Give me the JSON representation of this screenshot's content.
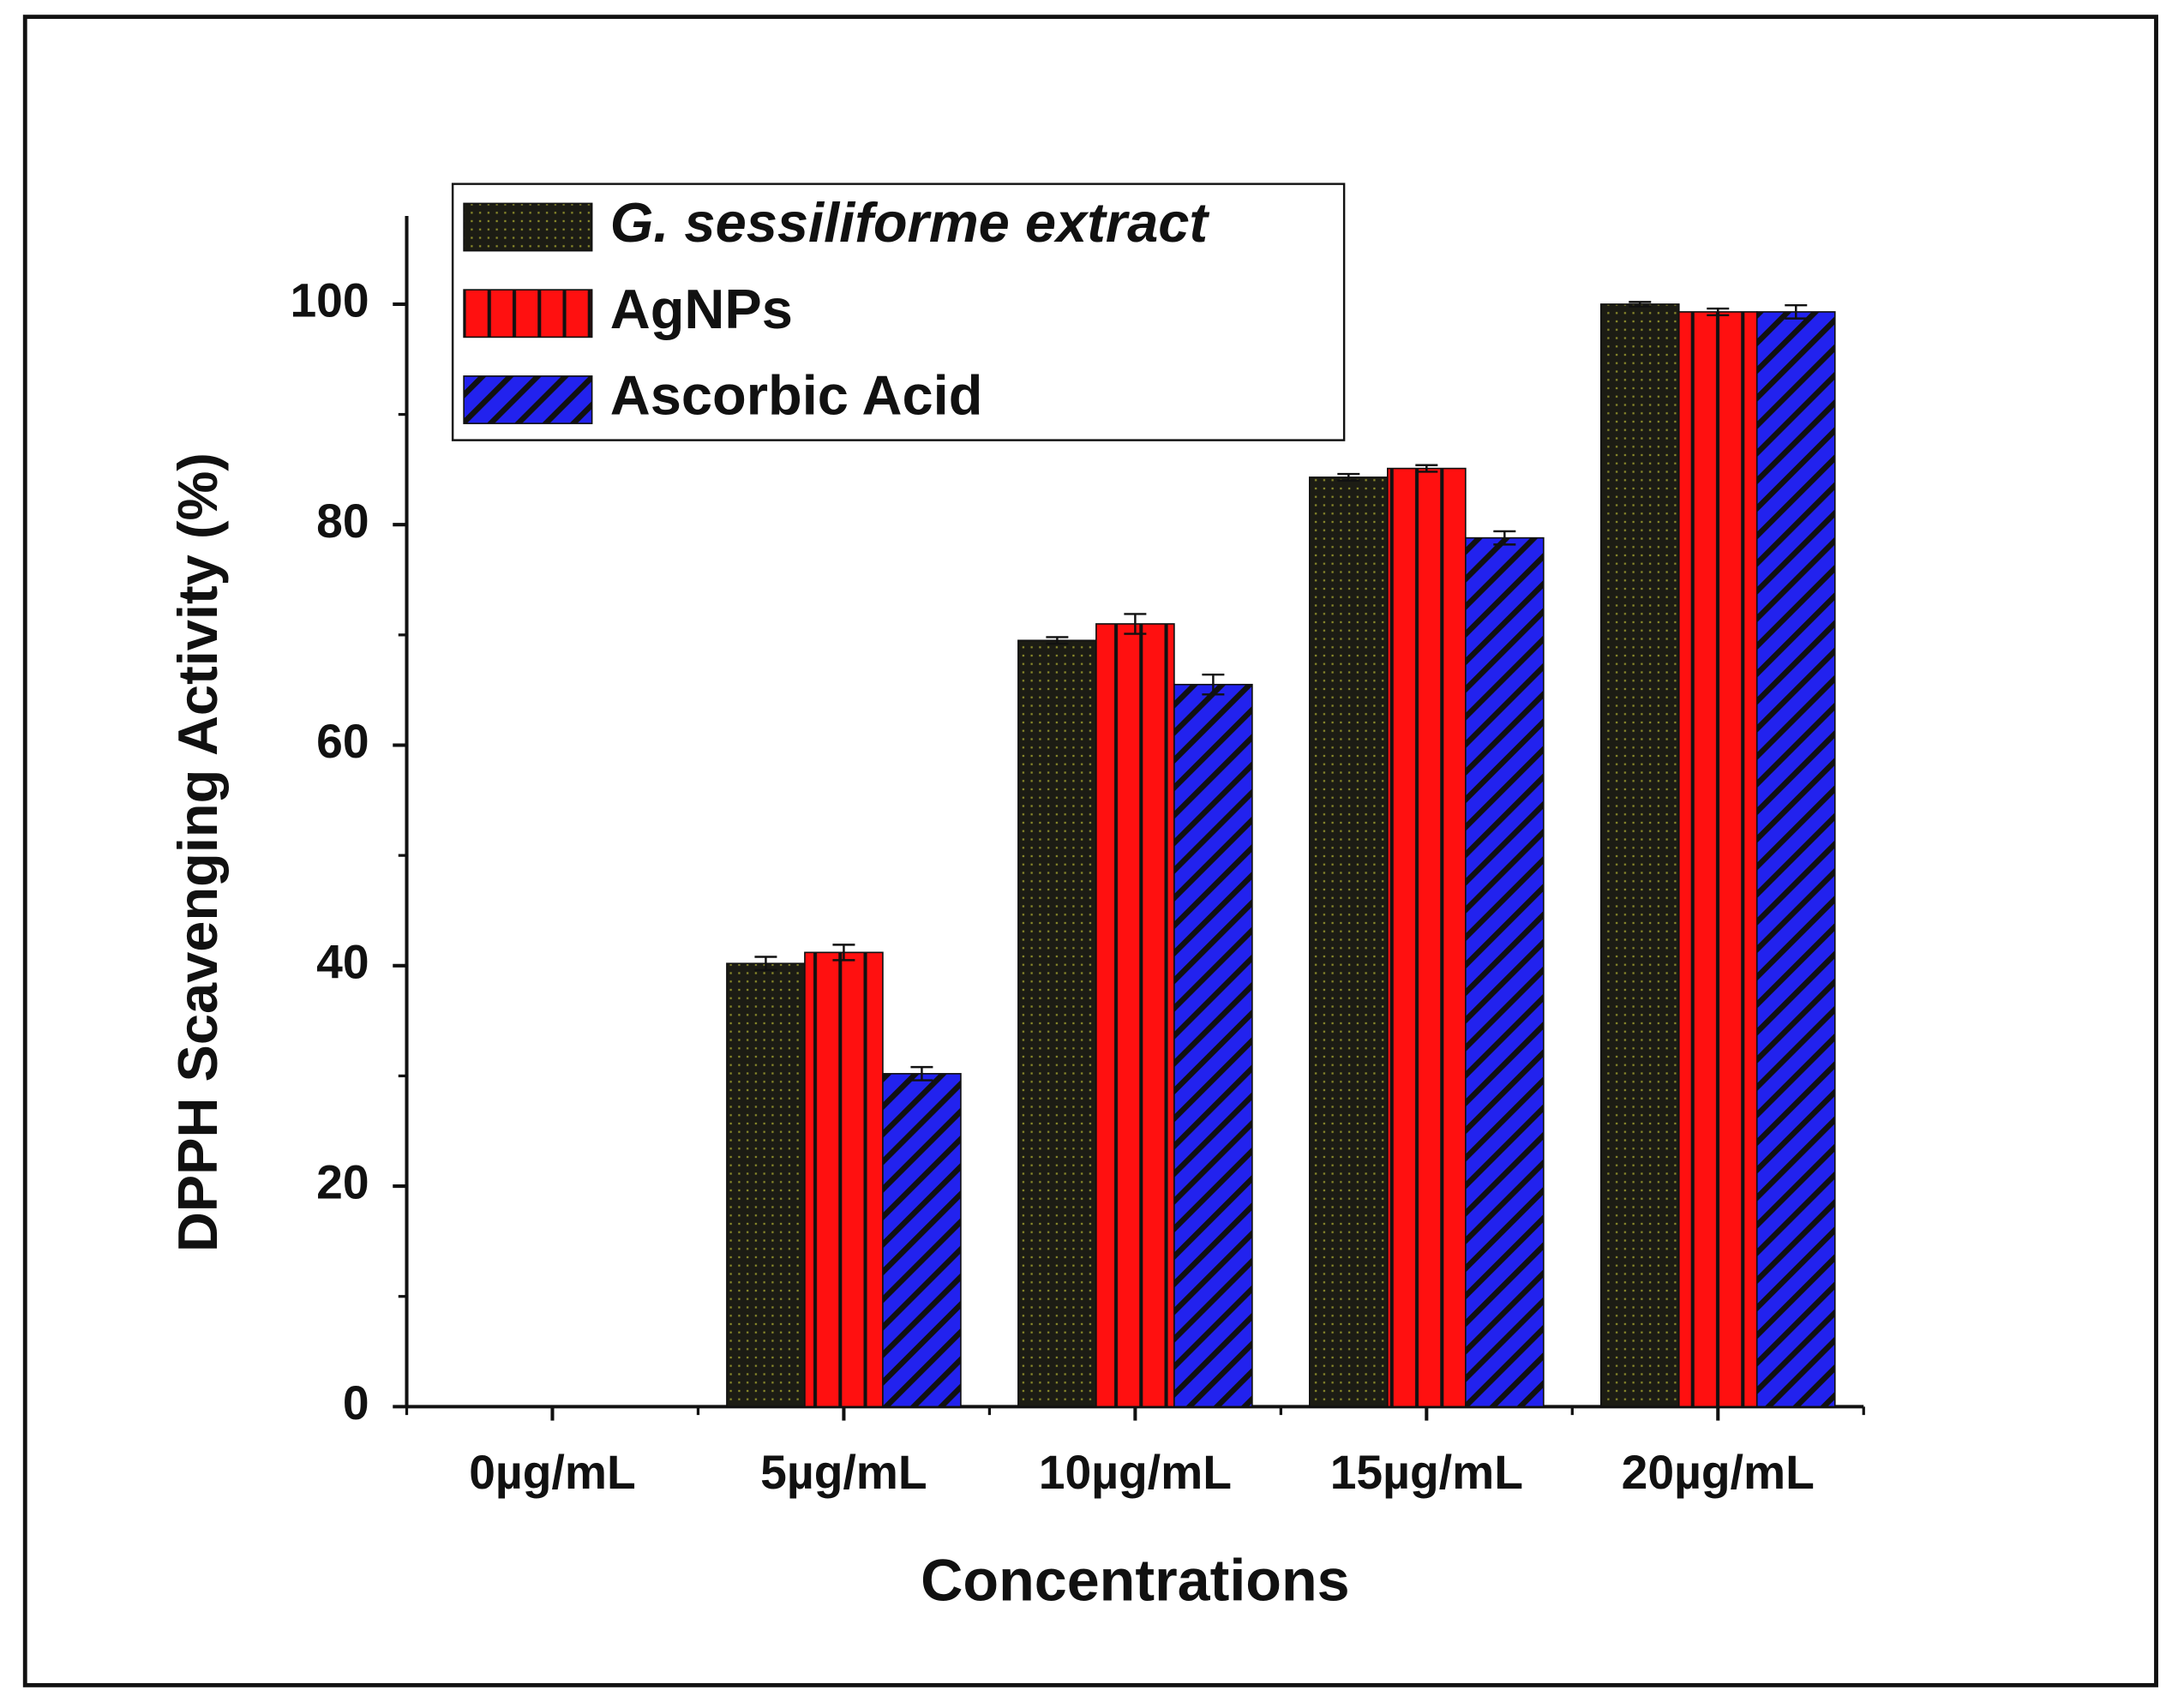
{
  "chart_data": {
    "type": "bar",
    "x_label": "Concentrations",
    "y_label": "DPPH Scavenging Activity (%)",
    "categories": [
      "0µg/mL",
      "5µg/mL",
      "10µg/mL",
      "15µg/mL",
      "20µg/mL"
    ],
    "series": [
      {
        "name": "G. sessiliforme extract",
        "color": "#1c1c14",
        "values": [
          0,
          40.2,
          69.5,
          84.3,
          100
        ],
        "errors": [
          0,
          0.6,
          0.3,
          0.3,
          0.2
        ]
      },
      {
        "name": "AgNPs",
        "color": "#ff1010",
        "values": [
          0,
          41.2,
          71,
          85.1,
          99.3
        ],
        "errors": [
          0,
          0.7,
          0.9,
          0.3,
          0.3
        ]
      },
      {
        "name": "Ascorbic Acid",
        "color": "#2222ee",
        "values": [
          0,
          30.2,
          65.5,
          78.8,
          99.3
        ],
        "errors": [
          0,
          0.6,
          0.9,
          0.6,
          0.6
        ]
      }
    ],
    "ylim": [
      0,
      108
    ],
    "yticks": [
      0,
      20,
      40,
      60,
      80,
      100
    ],
    "minor_yticks": [
      10,
      30,
      50,
      70,
      90
    ],
    "legend": "upper left"
  }
}
